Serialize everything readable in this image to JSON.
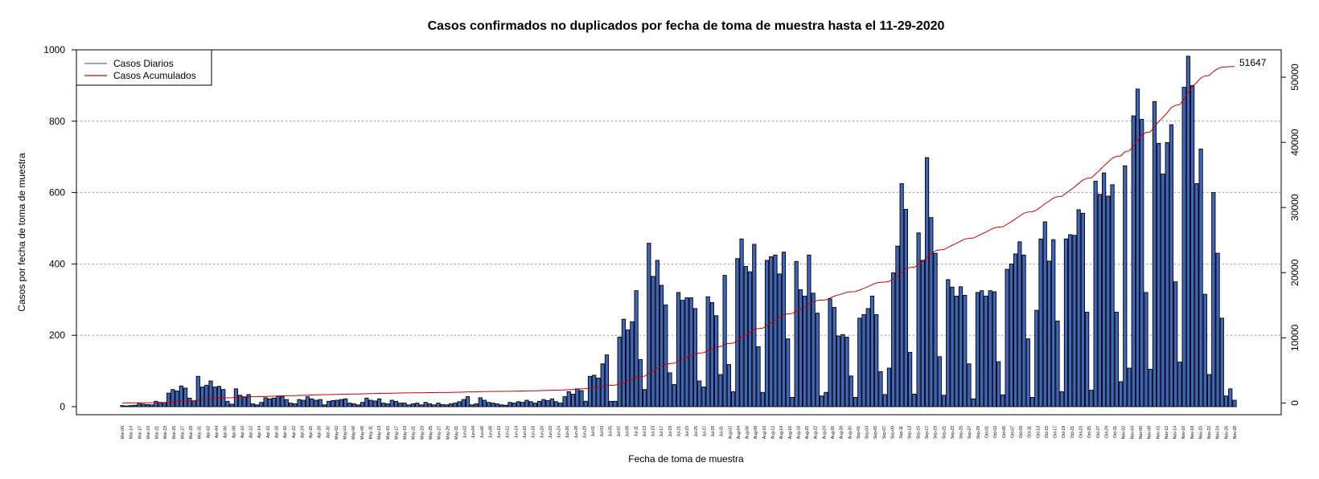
{
  "chart_data": {
    "type": "bar",
    "title": "Casos confirmados no duplicados por fecha de toma de muestra hasta el 11-29-2020",
    "xlabel": "Fecha de toma de muestra",
    "ylabel": "Casos por fecha de toma de muestra",
    "ylim": [
      0,
      1000
    ],
    "y_ticks": [
      0,
      200,
      400,
      600,
      800,
      1000
    ],
    "y2lim": [
      -1800,
      54200
    ],
    "y2_ticks": [
      0,
      10000,
      20000,
      30000,
      40000,
      50000
    ],
    "grid": "horizontal dotted",
    "legend_position": "top-left",
    "start_date": "2020-03-09",
    "date_tick_labels": [
      "Mar-09",
      "Mar-14",
      "Mar-17",
      "Mar-19",
      "Mar-21",
      "Mar-23",
      "Mar-25",
      "Mar-27",
      "Mar-29",
      "Mar-31",
      "Apr-02",
      "Apr-04",
      "Apr-06",
      "Apr-08",
      "Apr-10",
      "Apr-12",
      "Apr-14",
      "Apr-16",
      "Apr-18",
      "Apr-20",
      "Apr-22",
      "Apr-24",
      "Apr-26",
      "Apr-28",
      "Apr-30",
      "May-02",
      "May-04",
      "May-06",
      "May-08",
      "May-11",
      "May-13",
      "May-15",
      "May-17",
      "May-19",
      "May-21",
      "May-23",
      "May-25",
      "May-27",
      "May-29",
      "May-31",
      "Jun-02",
      "Jun-04",
      "Jun-06",
      "Jun-08",
      "Jun-10",
      "Jun-12",
      "Jun-14",
      "Jun-16",
      "Jun-18",
      "Jun-20",
      "Jun-22",
      "Jun-24",
      "Jun-26",
      "Jun-28",
      "Jun-29",
      "Jul-01",
      "Jul-03",
      "Jul-05",
      "Jul-07",
      "Jul-09",
      "Jul-11",
      "Jul-13",
      "Jul-15",
      "Jul-17",
      "Jul-19",
      "Jul-21",
      "Jul-23",
      "Jul-25",
      "Jul-27",
      "Jul-29",
      "Jul-31",
      "Aug-02",
      "Aug-04",
      "Aug-06",
      "Aug-08",
      "Aug-10",
      "Aug-12",
      "Aug-14",
      "Aug-16",
      "Aug-18",
      "Aug-20",
      "Aug-22",
      "Aug-24",
      "Aug-26",
      "Aug-28",
      "Aug-30",
      "Sep-01",
      "Sep-03",
      "Sep-05",
      "Sep-07",
      "Sep-09",
      "Sep-11",
      "Sep-13",
      "Sep-15",
      "Sep-17",
      "Sep-19",
      "Sep-21",
      "Sep-23",
      "Sep-25",
      "Sep-27",
      "Sep-29",
      "Oct-01",
      "Oct-03",
      "Oct-05",
      "Oct-07",
      "Oct-09",
      "Oct-11",
      "Oct-13",
      "Oct-15",
      "Oct-17",
      "Oct-19",
      "Oct-21",
      "Oct-23",
      "Oct-25",
      "Oct-27",
      "Oct-29",
      "Oct-31",
      "Nov-02",
      "Nov-04",
      "Nov-06",
      "Nov-08",
      "Nov-10",
      "Nov-12",
      "Nov-14",
      "Nov-16",
      "Nov-18",
      "Nov-20",
      "Nov-22",
      "Nov-24",
      "Nov-26",
      "Nov-28"
    ],
    "daily_values": [
      3,
      2,
      3,
      4,
      10,
      7,
      6,
      5,
      15,
      12,
      11,
      38,
      48,
      44,
      58,
      52,
      24,
      17,
      85,
      55,
      60,
      72,
      55,
      57,
      48,
      15,
      7,
      50,
      32,
      28,
      34,
      8,
      5,
      12,
      25,
      22,
      24,
      30,
      28,
      20,
      10,
      8,
      20,
      18,
      28,
      22,
      18,
      20,
      5,
      15,
      17,
      18,
      20,
      22,
      10,
      8,
      5,
      12,
      24,
      18,
      16,
      22,
      10,
      8,
      18,
      15,
      10,
      10,
      5,
      8,
      10,
      5,
      12,
      8,
      5,
      10,
      6,
      5,
      8,
      10,
      14,
      20,
      28,
      5,
      8,
      25,
      18,
      12,
      10,
      8,
      5,
      4,
      12,
      10,
      14,
      12,
      18,
      14,
      10,
      15,
      20,
      17,
      22,
      14,
      10,
      28,
      42,
      35,
      50,
      45,
      15,
      85,
      88,
      80,
      120,
      145,
      15,
      15,
      195,
      245,
      215,
      238,
      325,
      132,
      48,
      458,
      365,
      410,
      340,
      285,
      95,
      62,
      320,
      298,
      305,
      305,
      275,
      72,
      55,
      308,
      292,
      255,
      90,
      368,
      118,
      42,
      415,
      470,
      393,
      378,
      455,
      168,
      40,
      410,
      420,
      425,
      372,
      433,
      190,
      26,
      407,
      328,
      310,
      425,
      318,
      262,
      30,
      40,
      302,
      278,
      198,
      202,
      195,
      86,
      26,
      248,
      258,
      275,
      310,
      258,
      98,
      34,
      108,
      375,
      450,
      625,
      553,
      152,
      35,
      487,
      410,
      698,
      530,
      430,
      140,
      32,
      356,
      335,
      310,
      336,
      312,
      120,
      22,
      320,
      325,
      310,
      325,
      322,
      126,
      33,
      385,
      400,
      428,
      462,
      425,
      190,
      26,
      270,
      470,
      518,
      408,
      468,
      240,
      42,
      470,
      482,
      480,
      552,
      542,
      265,
      46,
      632,
      595,
      655,
      590,
      622,
      265,
      70,
      675,
      108,
      815,
      890,
      805,
      320,
      105,
      855,
      738,
      652,
      740,
      790,
      350,
      125,
      895,
      982,
      900,
      625,
      722,
      315,
      90,
      600,
      430,
      248,
      30,
      50,
      18
    ],
    "cumulative_final": 51647,
    "series": [
      {
        "name": "Casos Diarios",
        "color": "#4472c4",
        "bar_fill": "#3f66bb"
      },
      {
        "name": "Casos Acumulados",
        "color": "#cc0000"
      }
    ]
  }
}
